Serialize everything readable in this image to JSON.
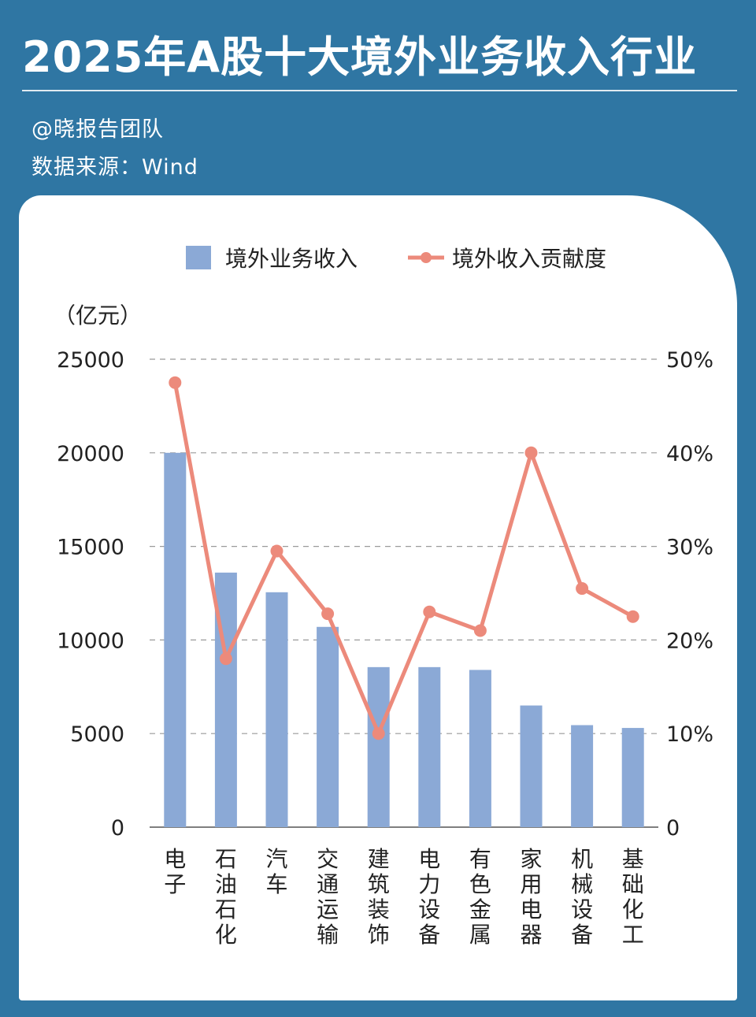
{
  "header": {
    "title": "2025年A股十大境外业务收入行业",
    "credit": "@晓报告团队",
    "source": "数据来源：Wind"
  },
  "colors": {
    "background": "#2f76a3",
    "bar": "#8ba9d6",
    "line": "#ec8a7b",
    "grid": "#9a9a9a",
    "text": "#222222"
  },
  "chart_data": {
    "type": "bar",
    "unit_label": "（亿元）",
    "categories": [
      "电子",
      "石油石化",
      "汽车",
      "交通运输",
      "建筑装饰",
      "电力设备",
      "有色金属",
      "家用电器",
      "机械设备",
      "基础化工"
    ],
    "series": [
      {
        "name": "境外业务收入",
        "type": "bar",
        "axis": "left",
        "values": [
          20000,
          13600,
          12550,
          10700,
          8550,
          8550,
          8400,
          6500,
          5450,
          5300
        ]
      },
      {
        "name": "境外收入贡献度",
        "type": "line",
        "axis": "right",
        "values": [
          47.5,
          18.0,
          29.5,
          22.8,
          10.0,
          23.0,
          21.0,
          40.0,
          25.5,
          22.5
        ]
      }
    ],
    "y_left": {
      "min": 0,
      "max": 25000,
      "ticks": [
        "0",
        "5000",
        "10000",
        "15000",
        "20000",
        "25000"
      ]
    },
    "y_right": {
      "min": 0,
      "max": 50,
      "ticks": [
        "0",
        "10%",
        "20%",
        "30%",
        "40%",
        "50%"
      ]
    },
    "grid": true,
    "legend_position": "top-center"
  }
}
